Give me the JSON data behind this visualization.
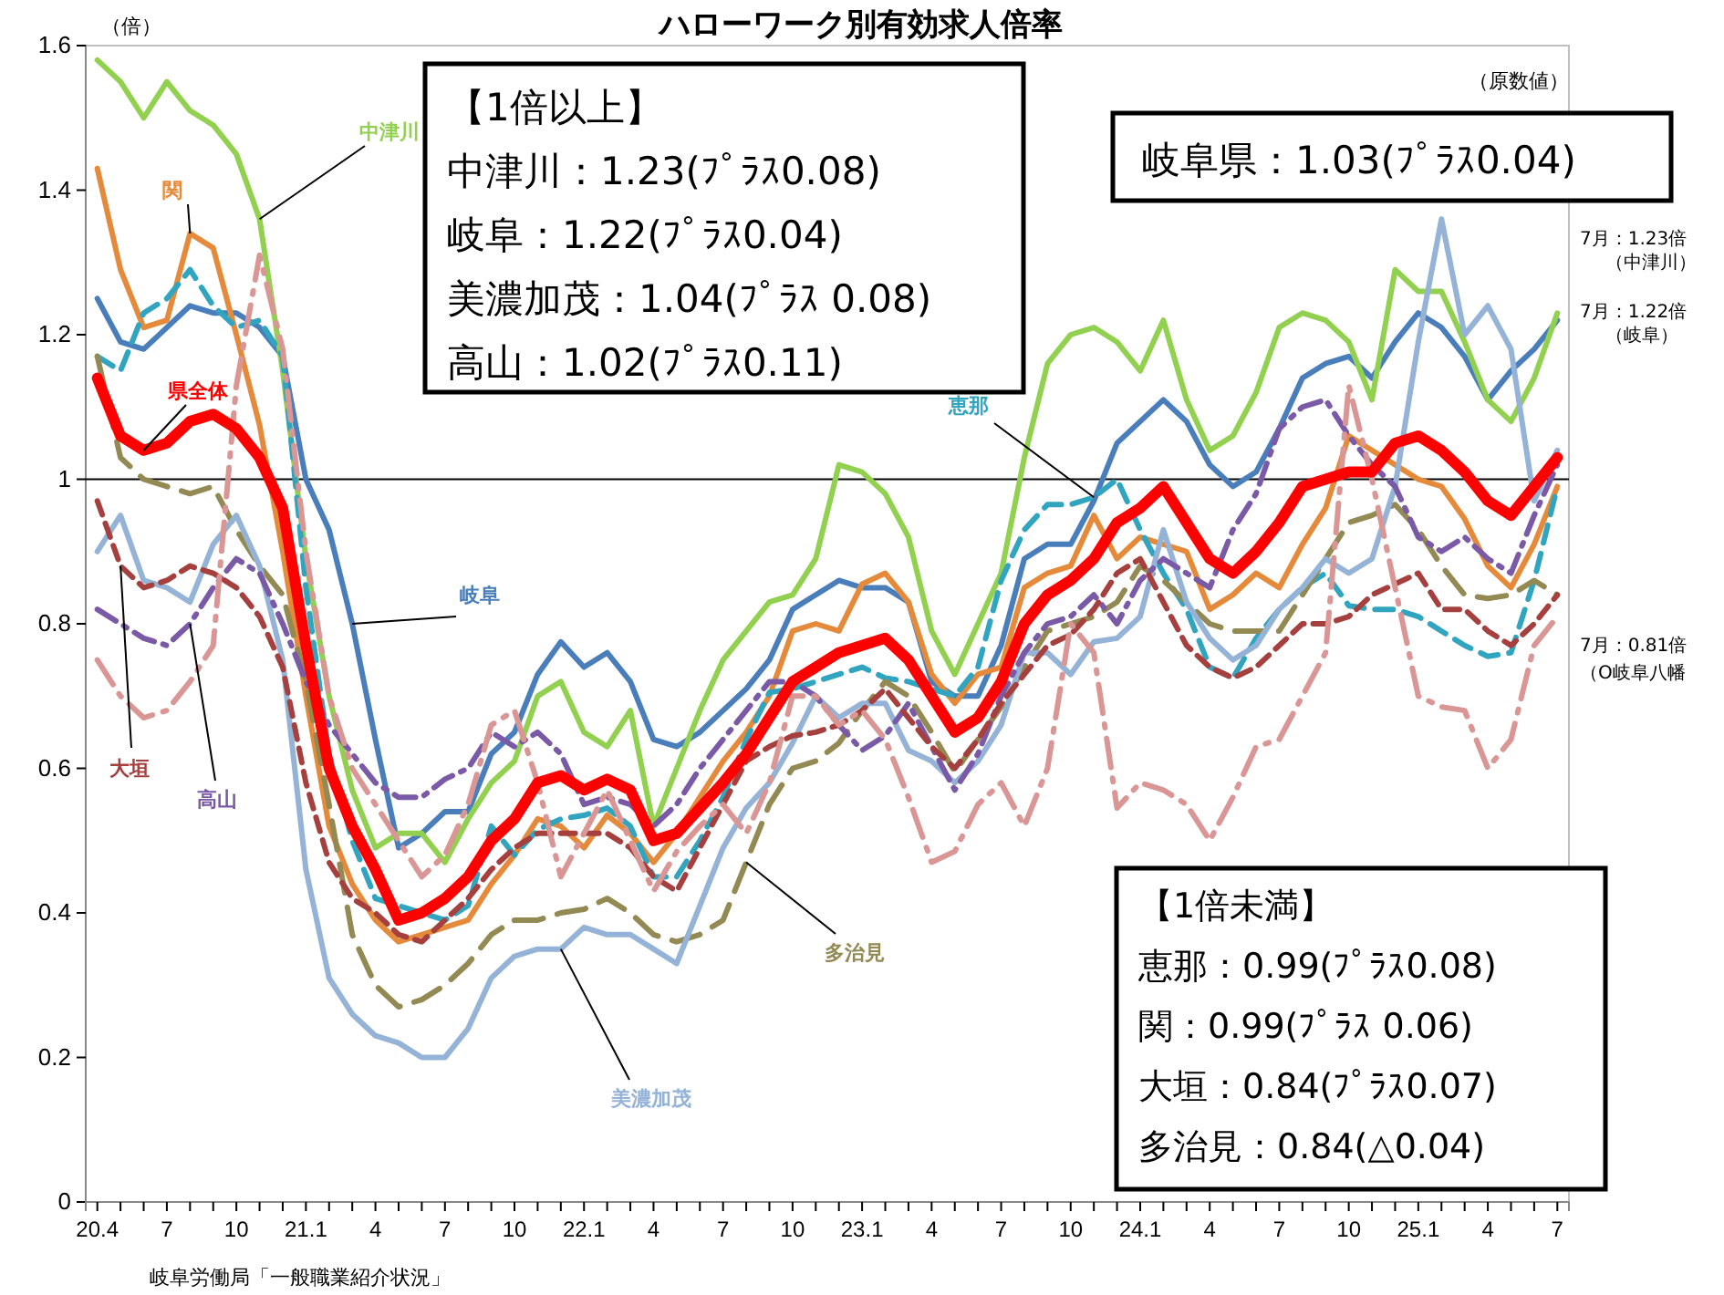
{
  "chart_data": {
    "type": "line",
    "title": "ハローワーク別有効求人倍率",
    "subtitle": "（原数値）",
    "ylabel": "（倍）",
    "categories": [
      "20.4",
      null,
      null,
      "7",
      null,
      null,
      "10",
      null,
      null,
      "21.1",
      null,
      null,
      "4",
      null,
      null,
      "7",
      null,
      null,
      "10",
      null,
      null,
      "22.1",
      null,
      null,
      "4",
      null,
      null,
      "7",
      null,
      null,
      "10",
      null,
      null,
      "23.1",
      null,
      null,
      "4",
      null,
      null,
      "7",
      null,
      null,
      "10",
      null,
      null,
      "24.1",
      null,
      null,
      "4",
      null,
      null,
      "7",
      null,
      null,
      "10",
      null,
      null,
      "25.1",
      null,
      null,
      "4",
      null,
      null,
      "7"
    ],
    "ylim": [
      0,
      1.6
    ],
    "yticks": [
      0,
      0.2,
      0.4,
      0.6,
      0.8,
      1,
      1.2,
      1.4,
      1.6
    ],
    "grid": false,
    "legend": false,
    "marker": "none",
    "ref_lines": [
      {
        "axis": "y",
        "value": 1,
        "color": "#000000"
      }
    ],
    "series": [
      {
        "name": "岐阜",
        "color": "#4a7ebb",
        "line_style": "solid",
        "values": [
          1.25,
          1.19,
          1.18,
          1.21,
          1.24,
          1.23,
          1.23,
          1.21,
          1.17,
          1.0,
          0.93,
          0.8,
          0.64,
          0.49,
          0.51,
          0.54,
          0.54,
          0.62,
          0.65,
          0.73,
          0.775,
          0.74,
          0.76,
          0.72,
          0.64,
          0.63,
          0.65,
          0.68,
          0.71,
          0.75,
          0.82,
          0.84,
          0.86,
          0.85,
          0.85,
          0.83,
          0.72,
          0.7,
          0.7,
          0.77,
          0.89,
          0.91,
          0.91,
          0.97,
          1.05,
          1.08,
          1.11,
          1.08,
          1.02,
          0.99,
          1.01,
          1.07,
          1.14,
          1.16,
          1.17,
          1.14,
          1.19,
          1.23,
          1.21,
          1.17,
          1.11,
          1.15,
          1.18,
          1.22
        ]
      },
      {
        "name": "中津川",
        "color": "#92d050",
        "line_style": "solid",
        "values": [
          1.58,
          1.55,
          1.5,
          1.55,
          1.51,
          1.49,
          1.45,
          1.36,
          1.15,
          0.89,
          0.7,
          0.57,
          0.49,
          0.51,
          0.51,
          0.47,
          0.53,
          0.58,
          0.61,
          0.7,
          0.72,
          0.65,
          0.63,
          0.68,
          0.52,
          0.6,
          0.68,
          0.75,
          0.79,
          0.83,
          0.84,
          0.89,
          1.02,
          1.01,
          0.98,
          0.92,
          0.79,
          0.73,
          0.8,
          0.87,
          1.03,
          1.16,
          1.2,
          1.21,
          1.19,
          1.15,
          1.22,
          1.11,
          1.04,
          1.06,
          1.12,
          1.21,
          1.23,
          1.22,
          1.19,
          1.11,
          1.29,
          1.26,
          1.26,
          1.19,
          1.11,
          1.08,
          1.14,
          1.23
        ]
      },
      {
        "name": "関",
        "color": "#e48a3a",
        "line_style": "solid",
        "values": [
          1.43,
          1.29,
          1.21,
          1.22,
          1.34,
          1.32,
          1.2,
          1.075,
          0.9,
          0.7,
          0.52,
          0.44,
          0.39,
          0.36,
          0.37,
          0.38,
          0.39,
          0.44,
          0.48,
          0.53,
          0.52,
          0.49,
          0.535,
          0.51,
          0.47,
          0.51,
          0.56,
          0.61,
          0.65,
          0.7,
          0.79,
          0.8,
          0.79,
          0.855,
          0.87,
          0.83,
          0.73,
          0.69,
          0.73,
          0.74,
          0.85,
          0.87,
          0.88,
          0.95,
          0.89,
          0.92,
          0.91,
          0.9,
          0.82,
          0.84,
          0.87,
          0.85,
          0.91,
          0.96,
          1.06,
          1.04,
          1.02,
          1.0,
          0.99,
          0.945,
          0.88,
          0.85,
          0.91,
          0.99
        ]
      },
      {
        "name": "恵那",
        "color": "#31a5c0",
        "line_style": "dashed",
        "values": [
          1.17,
          1.15,
          1.23,
          1.25,
          1.29,
          1.24,
          1.21,
          1.22,
          1.17,
          0.85,
          0.62,
          0.5,
          0.42,
          0.41,
          0.4,
          0.39,
          0.41,
          0.52,
          0.48,
          0.515,
          0.53,
          0.535,
          0.545,
          0.52,
          0.45,
          0.45,
          0.5,
          0.56,
          0.64,
          0.705,
          0.71,
          0.72,
          0.73,
          0.74,
          0.725,
          0.72,
          0.71,
          0.7,
          0.74,
          0.86,
          0.93,
          0.965,
          0.965,
          0.975,
          1.0,
          0.93,
          0.87,
          0.82,
          0.74,
          0.725,
          0.78,
          0.82,
          0.85,
          0.87,
          0.825,
          0.82,
          0.82,
          0.81,
          0.79,
          0.77,
          0.755,
          0.76,
          0.86,
          0.99
        ]
      },
      {
        "name": "多治見",
        "color": "#938953",
        "line_style": "dashed",
        "values": [
          1.17,
          1.03,
          1.0,
          0.99,
          0.98,
          0.99,
          0.93,
          0.88,
          0.84,
          0.72,
          0.55,
          0.37,
          0.3,
          0.27,
          0.28,
          0.3,
          0.33,
          0.37,
          0.39,
          0.39,
          0.4,
          0.405,
          0.42,
          0.4,
          0.37,
          0.36,
          0.37,
          0.39,
          0.47,
          0.55,
          0.6,
          0.61,
          0.635,
          0.68,
          0.72,
          0.7,
          0.65,
          0.595,
          0.64,
          0.685,
          0.74,
          0.79,
          0.8,
          0.81,
          0.83,
          0.88,
          0.86,
          0.83,
          0.8,
          0.79,
          0.79,
          0.79,
          0.84,
          0.89,
          0.94,
          0.95,
          0.965,
          0.93,
          0.88,
          0.84,
          0.835,
          0.84,
          0.86,
          0.84
        ]
      },
      {
        "name": "美濃加茂",
        "color": "#95b3d7",
        "line_style": "solid",
        "values": [
          0.9,
          0.95,
          0.86,
          0.85,
          0.83,
          0.91,
          0.95,
          0.88,
          0.75,
          0.46,
          0.31,
          0.26,
          0.23,
          0.22,
          0.2,
          0.2,
          0.24,
          0.31,
          0.34,
          0.35,
          0.35,
          0.38,
          0.37,
          0.37,
          0.35,
          0.33,
          0.41,
          0.49,
          0.545,
          0.58,
          0.635,
          0.7,
          0.67,
          0.69,
          0.69,
          0.625,
          0.61,
          0.58,
          0.61,
          0.66,
          0.76,
          0.76,
          0.73,
          0.775,
          0.78,
          0.81,
          0.93,
          0.83,
          0.78,
          0.75,
          0.77,
          0.82,
          0.85,
          0.89,
          0.87,
          0.89,
          0.99,
          1.19,
          1.36,
          1.2,
          1.24,
          1.18,
          0.97,
          1.04
        ]
      },
      {
        "name": "高山",
        "color": "#7a5aa6",
        "line_style": "dashed",
        "values": [
          0.82,
          0.8,
          0.78,
          0.77,
          0.8,
          0.85,
          0.89,
          0.87,
          0.8,
          0.72,
          0.66,
          0.62,
          0.58,
          0.56,
          0.56,
          0.585,
          0.6,
          0.65,
          0.63,
          0.65,
          0.62,
          0.55,
          0.56,
          0.55,
          0.52,
          0.55,
          0.6,
          0.64,
          0.68,
          0.72,
          0.72,
          0.7,
          0.66,
          0.625,
          0.645,
          0.69,
          0.63,
          0.57,
          0.62,
          0.7,
          0.76,
          0.8,
          0.81,
          0.84,
          0.8,
          0.86,
          0.89,
          0.87,
          0.85,
          0.93,
          0.98,
          1.07,
          1.1,
          1.11,
          1.06,
          1.02,
          0.99,
          0.92,
          0.9,
          0.92,
          0.89,
          0.87,
          0.95,
          1.02
        ]
      },
      {
        "name": "大垣",
        "color": "#a5403f",
        "line_style": "dashed",
        "values": [
          0.97,
          0.88,
          0.85,
          0.86,
          0.88,
          0.87,
          0.85,
          0.81,
          0.74,
          0.58,
          0.47,
          0.42,
          0.4,
          0.37,
          0.36,
          0.39,
          0.42,
          0.46,
          0.49,
          0.51,
          0.51,
          0.51,
          0.51,
          0.49,
          0.45,
          0.43,
          0.49,
          0.55,
          0.61,
          0.63,
          0.645,
          0.65,
          0.66,
          0.68,
          0.71,
          0.67,
          0.63,
          0.6,
          0.64,
          0.69,
          0.73,
          0.77,
          0.785,
          0.82,
          0.87,
          0.89,
          0.83,
          0.77,
          0.74,
          0.725,
          0.74,
          0.77,
          0.8,
          0.8,
          0.81,
          0.84,
          0.855,
          0.87,
          0.82,
          0.82,
          0.79,
          0.77,
          0.8,
          0.84
        ]
      },
      {
        "color": "#d99694",
        "line_style": "dashed",
        "values": [
          0.75,
          0.7,
          0.67,
          0.68,
          0.72,
          0.77,
          1.13,
          1.31,
          1.18,
          0.9,
          0.7,
          0.6,
          0.55,
          0.5,
          0.45,
          0.48,
          0.55,
          0.66,
          0.68,
          0.58,
          0.45,
          0.51,
          0.57,
          0.5,
          0.43,
          0.485,
          0.52,
          0.55,
          0.51,
          0.58,
          0.7,
          0.7,
          0.66,
          0.68,
          0.64,
          0.56,
          0.47,
          0.485,
          0.55,
          0.58,
          0.52,
          0.6,
          0.8,
          0.76,
          0.545,
          0.58,
          0.57,
          0.55,
          0.5,
          0.56,
          0.63,
          0.64,
          0.7,
          0.76,
          1.13,
          1.0,
          0.85,
          0.7,
          0.685,
          0.68,
          0.6,
          0.64,
          0.77,
          0.81
        ]
      },
      {
        "name": "県全体",
        "color": "#ff0000",
        "line_style": "solid",
        "values": [
          1.14,
          1.06,
          1.04,
          1.05,
          1.08,
          1.09,
          1.07,
          1.03,
          0.96,
          0.77,
          0.6,
          0.52,
          0.46,
          0.39,
          0.4,
          0.42,
          0.45,
          0.5,
          0.53,
          0.58,
          0.59,
          0.57,
          0.585,
          0.57,
          0.5,
          0.51,
          0.545,
          0.58,
          0.62,
          0.67,
          0.72,
          0.74,
          0.76,
          0.77,
          0.78,
          0.75,
          0.7,
          0.65,
          0.67,
          0.72,
          0.8,
          0.84,
          0.86,
          0.89,
          0.94,
          0.96,
          0.99,
          0.94,
          0.89,
          0.87,
          0.9,
          0.94,
          0.99,
          1.0,
          1.01,
          1.01,
          1.05,
          1.06,
          1.04,
          1.01,
          0.97,
          0.95,
          0.99,
          1.03
        ]
      }
    ],
    "annotations": [
      "【1倍以上】",
      "中津川：1.23(ﾌﾟﾗｽ0.08)",
      "岐阜：1.22(ﾌﾟﾗｽ0.04)",
      "美濃加茂：1.04(ﾌﾟﾗｽ 0.08)",
      "高山：1.02(ﾌﾟﾗｽ0.11)",
      "岐阜県：1.03(ﾌﾟﾗｽ0.04)",
      "【1倍未満】",
      "恵那：0.99(ﾌﾟﾗｽ0.08)",
      "関：0.99(ﾌﾟﾗｽ 0.06)",
      "大垣：0.84(ﾌﾟﾗｽ0.07)",
      "多治見：0.84(△0.04)",
      "7月：1.23倍",
      "（中津川）",
      "7月：1.22倍",
      "（岐阜）",
      "7月：0.81倍",
      "（O岐阜八幡",
      "岐阜労働局「一般職業紹介状況」"
    ]
  }
}
